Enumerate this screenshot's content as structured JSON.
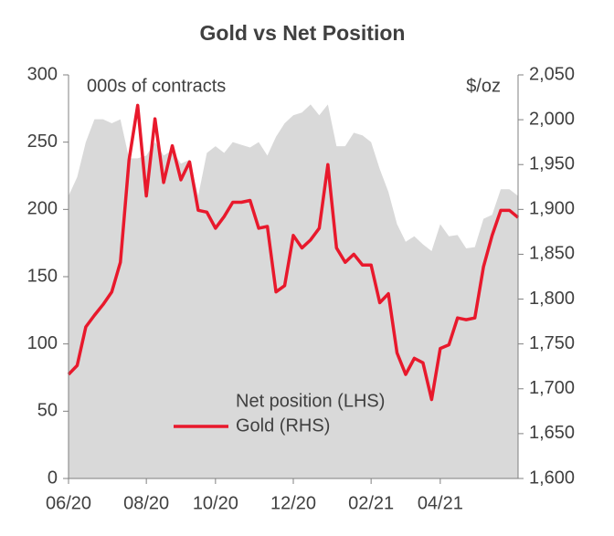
{
  "chart_data": {
    "type": "line",
    "title": "Gold  vs Net Position",
    "y_label": "000s of contracts",
    "y2_label": "$/oz",
    "categories": [
      "06/20",
      null,
      null,
      null,
      null,
      null,
      null,
      null,
      null,
      "08/20",
      null,
      null,
      null,
      null,
      null,
      null,
      null,
      "10/20",
      null,
      null,
      null,
      null,
      null,
      null,
      null,
      null,
      "12/20",
      null,
      null,
      null,
      null,
      null,
      null,
      null,
      null,
      "02/21",
      null,
      null,
      null,
      null,
      null,
      null,
      null,
      "04/21",
      null,
      null,
      null,
      null,
      null,
      null,
      null,
      null,
      null
    ],
    "series": [
      {
        "name": "Net position (LHS)",
        "type": "area",
        "color": "#d9d9d9",
        "values": [
          210,
          224,
          250,
          267,
          267,
          264,
          267,
          238,
          238,
          240,
          250,
          240,
          244,
          234,
          237,
          210,
          242,
          247,
          242,
          250,
          248,
          246,
          250,
          240,
          254,
          264,
          270,
          272,
          278,
          270,
          278,
          247,
          247,
          257,
          255,
          250,
          230,
          213,
          189,
          176,
          180,
          174,
          169,
          189,
          180,
          181,
          171,
          172,
          193,
          196,
          215,
          215,
          210
        ]
      },
      {
        "name": "Gold (RHS)",
        "type": "line",
        "axis": "y2",
        "color": "#e8192c",
        "values": [
          1716,
          1726,
          1769,
          1782,
          1794,
          1808,
          1841,
          1955,
          2016,
          1915,
          2001,
          1930,
          1971,
          1933,
          1953,
          1899,
          1897,
          1879,
          1892,
          1908,
          1908,
          1910,
          1879,
          1881,
          1808,
          1815,
          1871,
          1857,
          1866,
          1879,
          1950,
          1857,
          1841,
          1850,
          1838,
          1838,
          1796,
          1806,
          1740,
          1716,
          1734,
          1729,
          1688,
          1745,
          1749,
          1779,
          1777,
          1779,
          1836,
          1871,
          1899,
          1899,
          1891
        ]
      }
    ],
    "ylim": [
      0,
      300
    ],
    "yticks": [
      0,
      50,
      100,
      150,
      200,
      250,
      300
    ],
    "y2lim": [
      1600,
      2050
    ],
    "y2ticks": [
      {
        "value": 1600,
        "label": "1,600"
      },
      {
        "value": 1650,
        "label": "1,650"
      },
      {
        "value": 1700,
        "label": "1,700"
      },
      {
        "value": 1750,
        "label": "1,750"
      },
      {
        "value": 1800,
        "label": "1,800"
      },
      {
        "value": 1850,
        "label": "1,850"
      },
      {
        "value": 1900,
        "label": "1,900"
      },
      {
        "value": 1950,
        "label": "1,950"
      },
      {
        "value": 2000,
        "label": "2,000"
      },
      {
        "value": 2050,
        "label": "2,050"
      }
    ],
    "grid": false
  }
}
